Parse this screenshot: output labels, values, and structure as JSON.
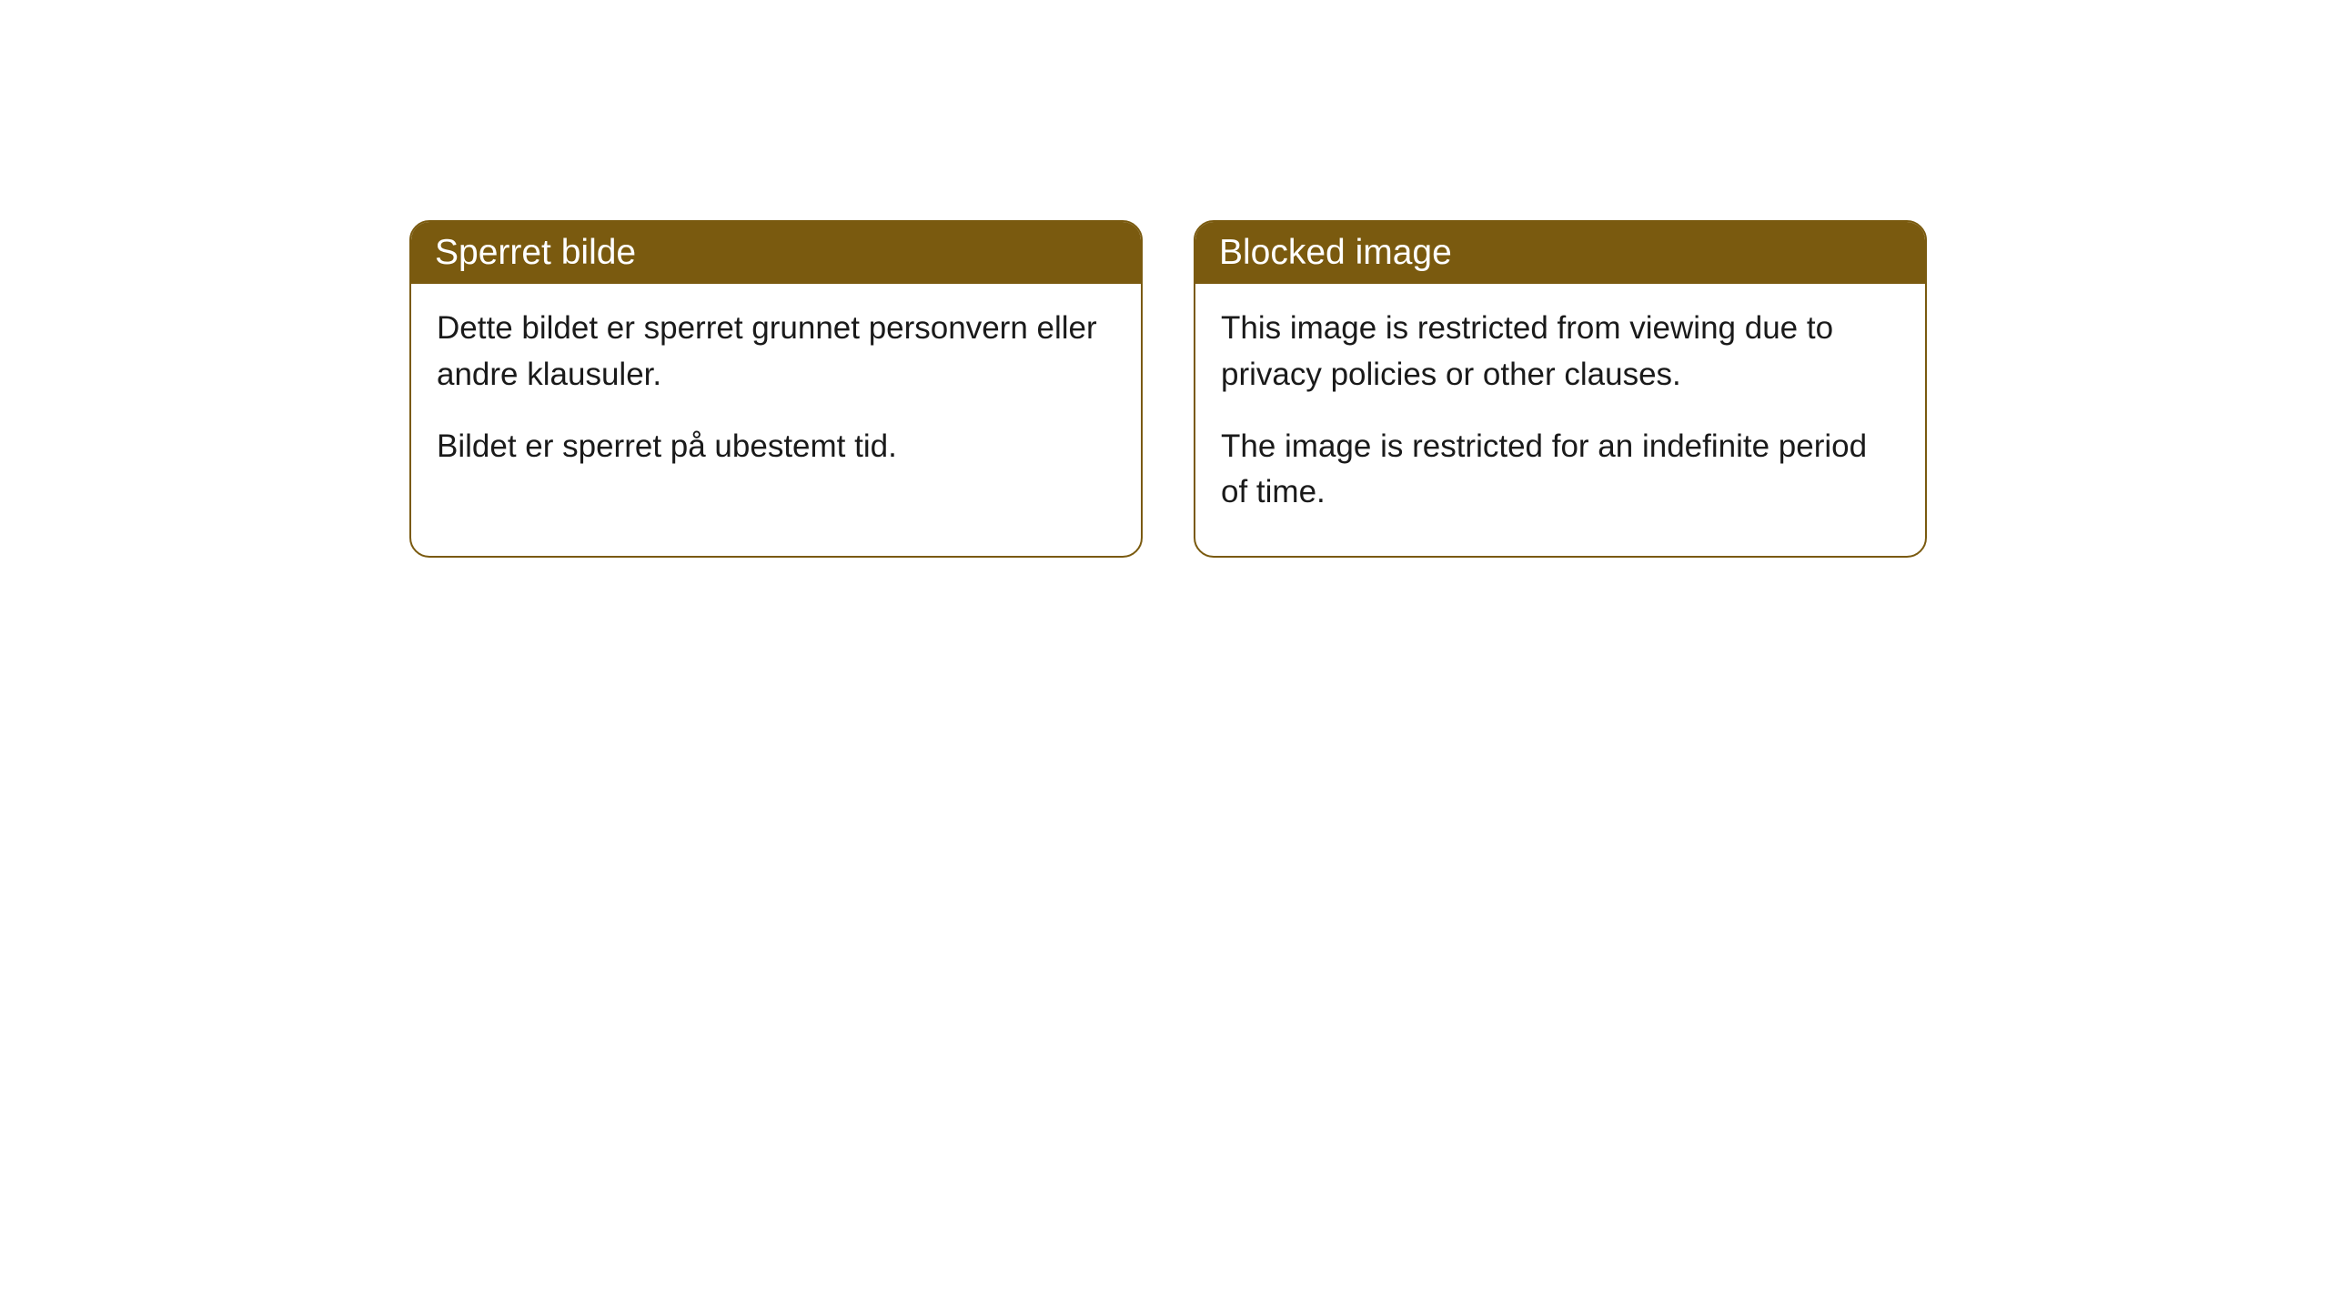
{
  "cards": [
    {
      "title": "Sperret bilde",
      "body1": "Dette bildet er sperret grunnet personvern eller andre klausuler.",
      "body2": "Bildet er sperret på ubestemt tid."
    },
    {
      "title": "Blocked image",
      "body1": "This image is restricted from viewing due to privacy policies or other clauses.",
      "body2": "The image is restricted for an indefinite period of time."
    }
  ],
  "styling": {
    "header_bg": "#7a5a0f",
    "header_text_color": "#ffffff",
    "card_border_color": "#7a5a0f",
    "card_bg": "#ffffff",
    "body_text_color": "#1a1a1a",
    "border_radius": 22,
    "header_fontsize": 39,
    "body_fontsize": 35
  }
}
